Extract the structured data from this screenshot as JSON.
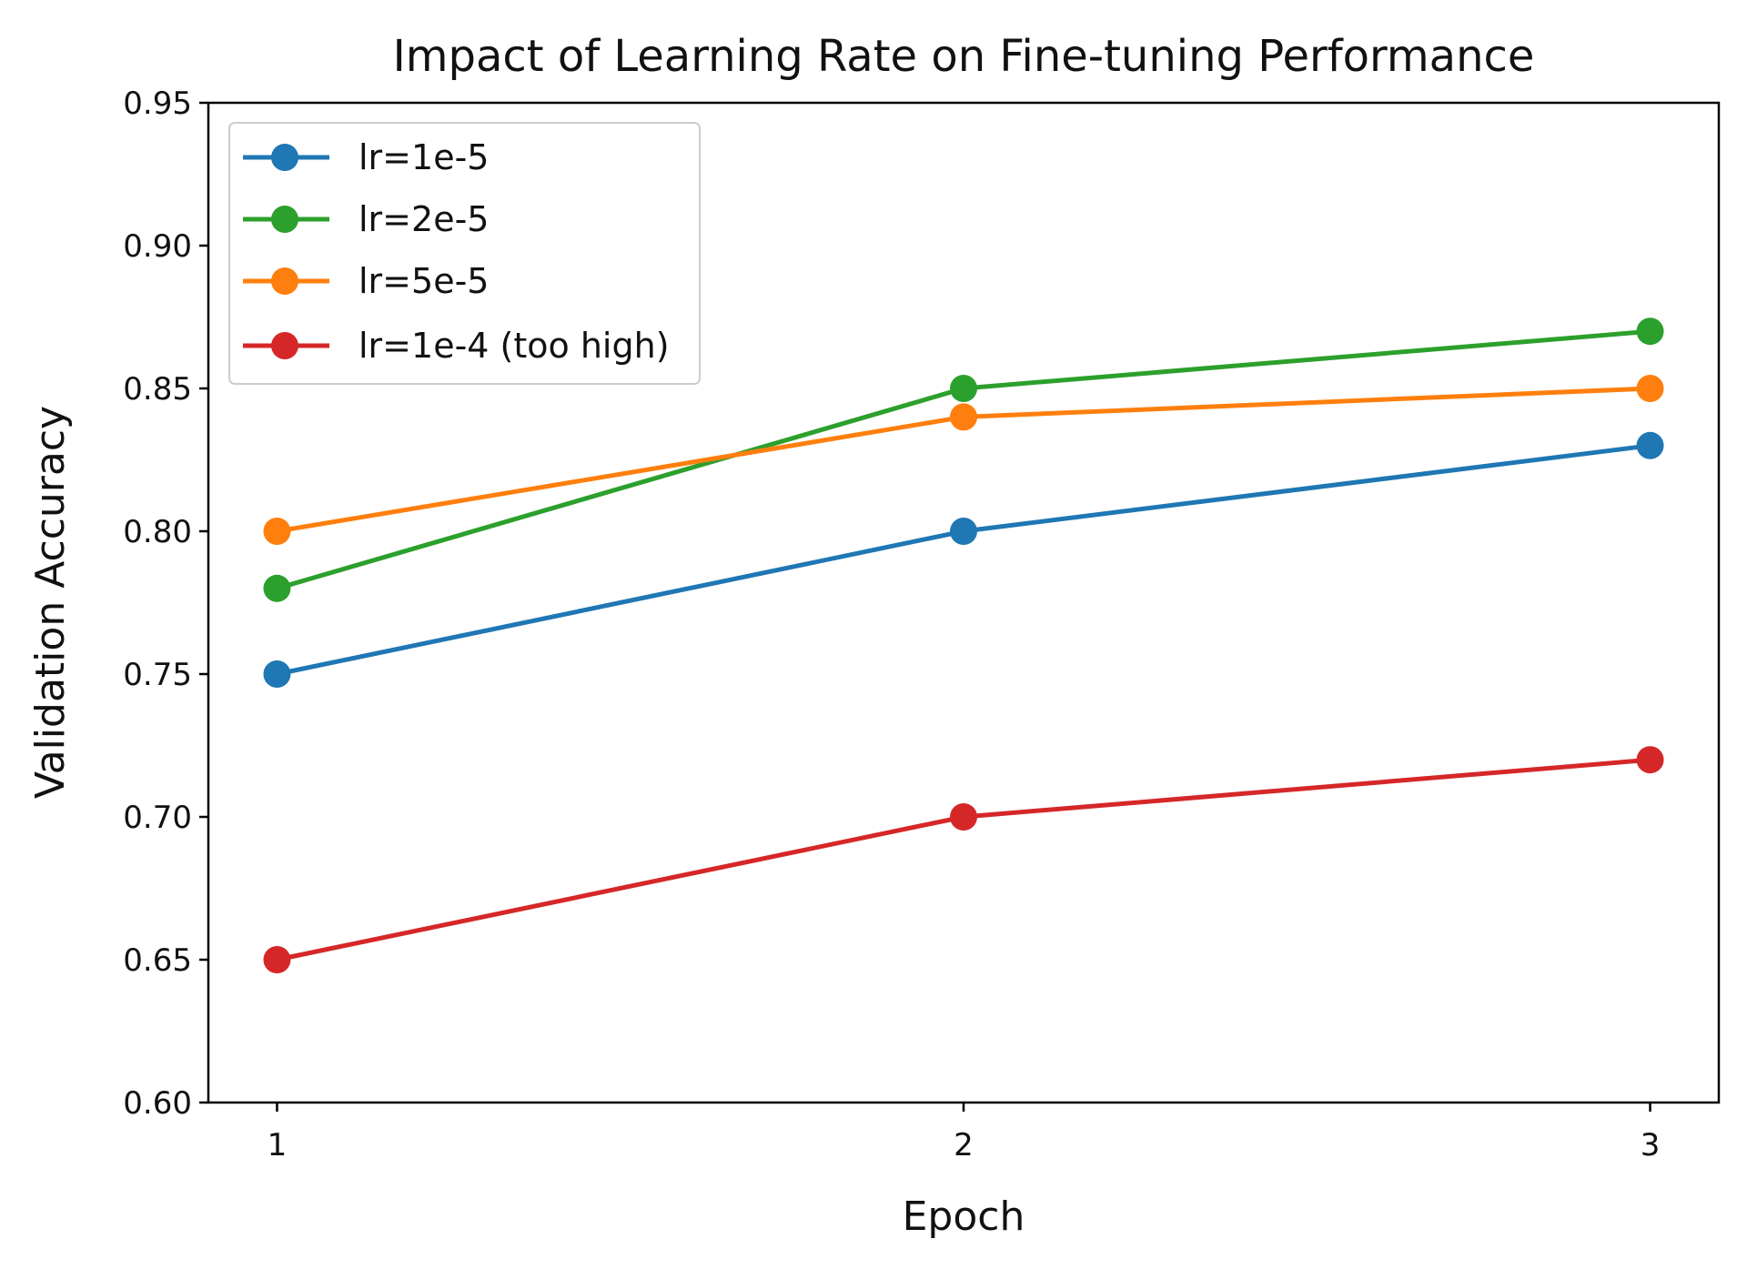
{
  "chart_data": {
    "type": "line",
    "title": "Impact of Learning Rate on Fine-tuning Performance",
    "xlabel": "Epoch",
    "ylabel": "Validation Accuracy",
    "x": [
      1,
      2,
      3
    ],
    "xticks": [
      "1",
      "2",
      "3"
    ],
    "xlim": [
      0.9,
      3.1
    ],
    "ylim": [
      0.6,
      0.95
    ],
    "yticks": [
      "0.60",
      "0.65",
      "0.70",
      "0.75",
      "0.80",
      "0.85",
      "0.90",
      "0.95"
    ],
    "grid": false,
    "legend_position": "top-left",
    "series": [
      {
        "name": "lr=1e-5",
        "color": "#1f77b4",
        "values": [
          0.75,
          0.8,
          0.83
        ]
      },
      {
        "name": "lr=2e-5",
        "color": "#2ca02c",
        "values": [
          0.78,
          0.85,
          0.87
        ]
      },
      {
        "name": "lr=5e-5",
        "color": "#ff7f0e",
        "values": [
          0.8,
          0.84,
          0.85
        ]
      },
      {
        "name": "lr=1e-4 (too high)",
        "color": "#d62728",
        "values": [
          0.65,
          0.7,
          0.72
        ]
      }
    ]
  }
}
